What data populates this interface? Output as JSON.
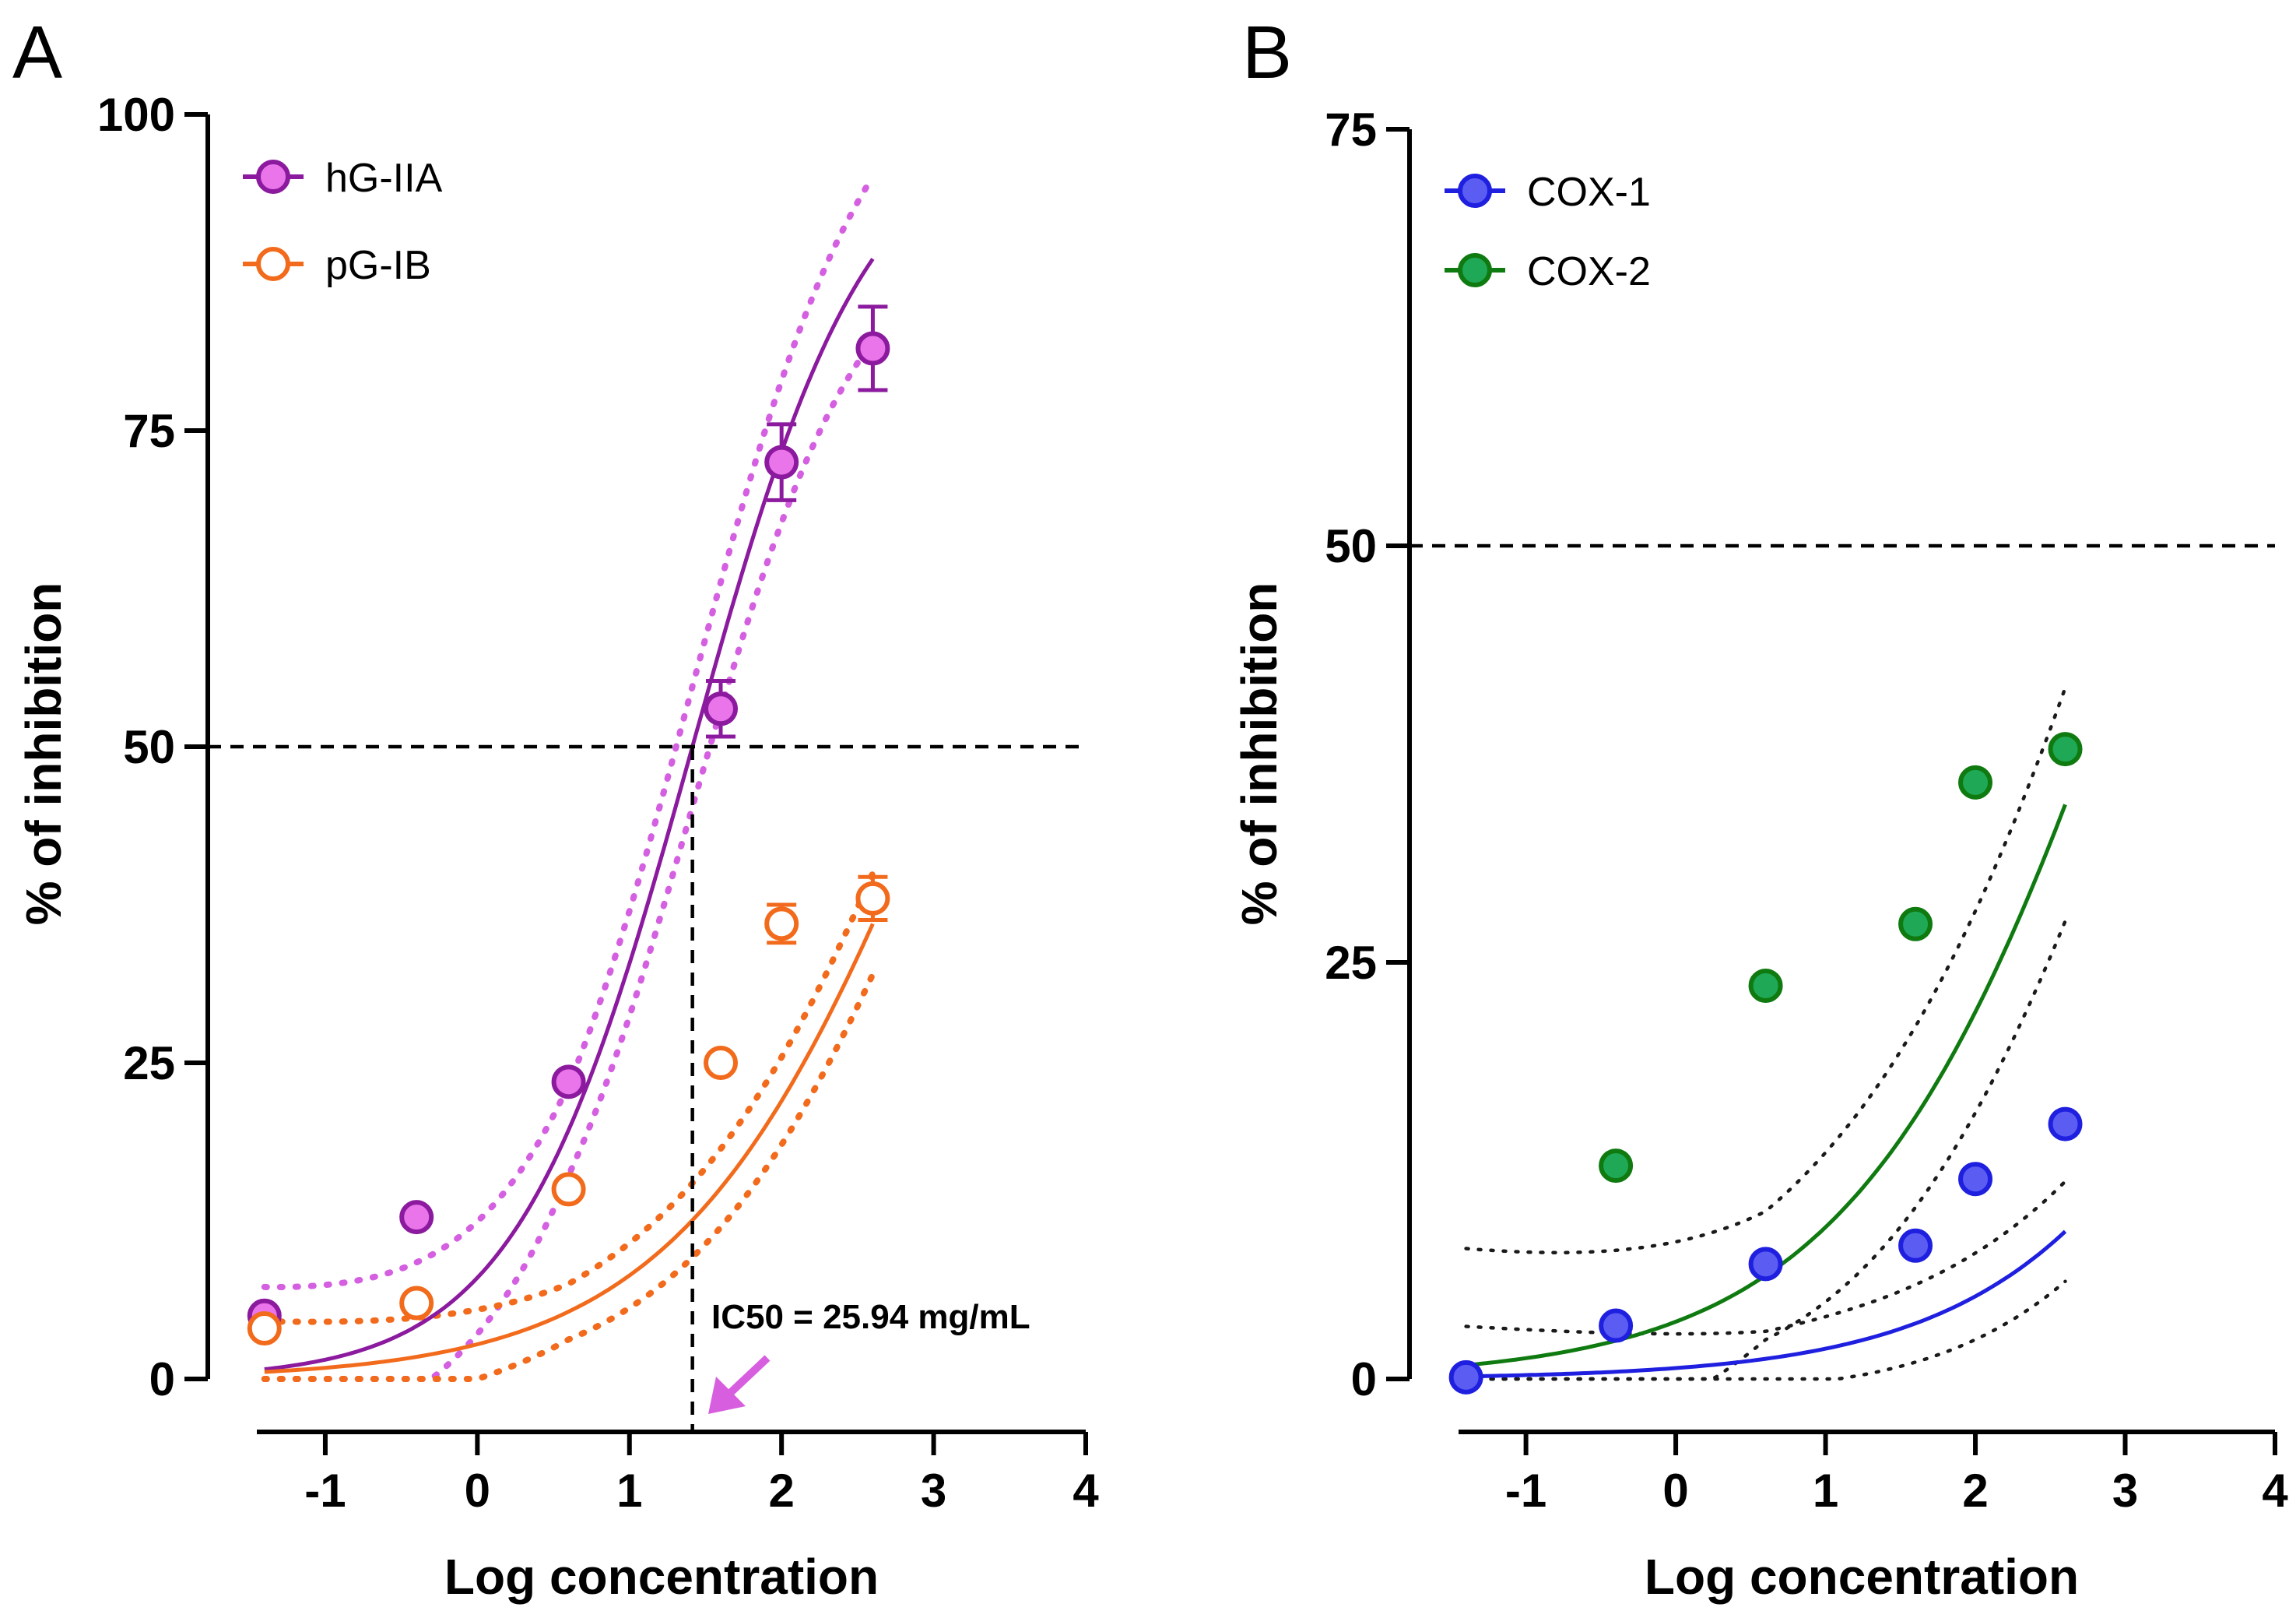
{
  "chart_data": [
    {
      "type": "scatter",
      "panel_label": "A",
      "title": "",
      "xlabel": "Log concentration",
      "ylabel": "% of inhibition",
      "xlim": [
        -1.45,
        4
      ],
      "ylim": [
        0,
        100
      ],
      "xticks": [
        -1,
        0,
        1,
        2,
        3,
        4
      ],
      "xtick_labels": [
        "-1",
        "0",
        "1",
        "2",
        "3",
        "4"
      ],
      "yticks": [
        0,
        25,
        50,
        75,
        100
      ],
      "ytick_labels": [
        "0",
        "25",
        "50",
        "75",
        "100"
      ],
      "legend_position": "top-left",
      "reference_line_y": 50,
      "ic50_x": 1.414,
      "annotation": "IC50 = 25.94 mg/mL",
      "annotation_color": "#d85ee0",
      "series": [
        {
          "name": "hG-IIA",
          "color": "#8b1a9e",
          "fill": "#ea74ea",
          "marker": "filled",
          "x": [
            -1.4,
            -0.4,
            0.6,
            1.6,
            2.0,
            2.6
          ],
          "y": [
            5,
            12.8,
            23.5,
            53,
            72.5,
            81.5
          ],
          "err": [
            0.5,
            0.5,
            0.5,
            2.2,
            3.0,
            3.3
          ],
          "fit": {
            "bottom": 0,
            "top": 100,
            "logec50": 1.414,
            "hill": 0.75,
            "x_range": [
              -1.4,
              2.6
            ]
          },
          "ci_color": "#d45fe0",
          "ci_offset": 6.5
        },
        {
          "name": "pG-IB",
          "color": "#f26b1d",
          "fill": "#ffffff",
          "marker": "open",
          "x": [
            -1.4,
            -0.4,
            0.6,
            1.6,
            2.0,
            2.6
          ],
          "y": [
            4,
            6,
            15,
            25,
            36,
            38
          ],
          "err": [
            0.5,
            0.5,
            0.5,
            0.5,
            1.5,
            1.7
          ],
          "fit": {
            "bottom": 0,
            "top": 100,
            "logec50": 3.1,
            "hill": 0.5,
            "x_range": [
              -1.4,
              2.6
            ]
          },
          "ci_color": "#f26b1d",
          "ci_offset": 4
        }
      ]
    },
    {
      "type": "scatter",
      "panel_label": "B",
      "title": "",
      "xlabel": "Log concentration",
      "ylabel": "% of inhibition",
      "xlim": [
        -1.45,
        4
      ],
      "ylim": [
        0,
        75
      ],
      "xticks": [
        -1,
        0,
        1,
        2,
        3,
        4
      ],
      "xtick_labels": [
        "-1",
        "0",
        "1",
        "2",
        "3",
        "4"
      ],
      "yticks": [
        0,
        25,
        50,
        75
      ],
      "ytick_labels": [
        "0",
        "25",
        "50",
        "75"
      ],
      "legend_position": "top-left",
      "reference_line_y": 50,
      "series": [
        {
          "name": "COX-1",
          "color": "#1f1fe0",
          "fill": "#5a5cf2",
          "marker": "filled",
          "x": [
            -1.4,
            -0.4,
            0.6,
            1.6,
            2.0,
            2.6
          ],
          "y": [
            0.1,
            3.2,
            6.9,
            8,
            12,
            15.3
          ],
          "fit": {
            "bottom": 0,
            "top": 100,
            "logec50": 4.85,
            "hill": 0.45,
            "x_range": [
              -1.4,
              2.6
            ]
          },
          "ci_color": "#1a1a1a",
          "ci_offset": 3
        },
        {
          "name": "COX-2",
          "color": "#0f7a10",
          "fill": "#1fa855",
          "marker": "filled",
          "x": [
            -0.4,
            0.6,
            1.6,
            2.0,
            2.6
          ],
          "y": [
            12.8,
            23.6,
            27.3,
            35.8,
            37.8
          ],
          "fit": {
            "bottom": 0,
            "top": 100,
            "logec50": 3.22,
            "hill": 0.45,
            "x_range": [
              -1.4,
              2.6
            ]
          },
          "ci_color": "#1a1a1a",
          "ci_offset": 7
        }
      ]
    }
  ]
}
